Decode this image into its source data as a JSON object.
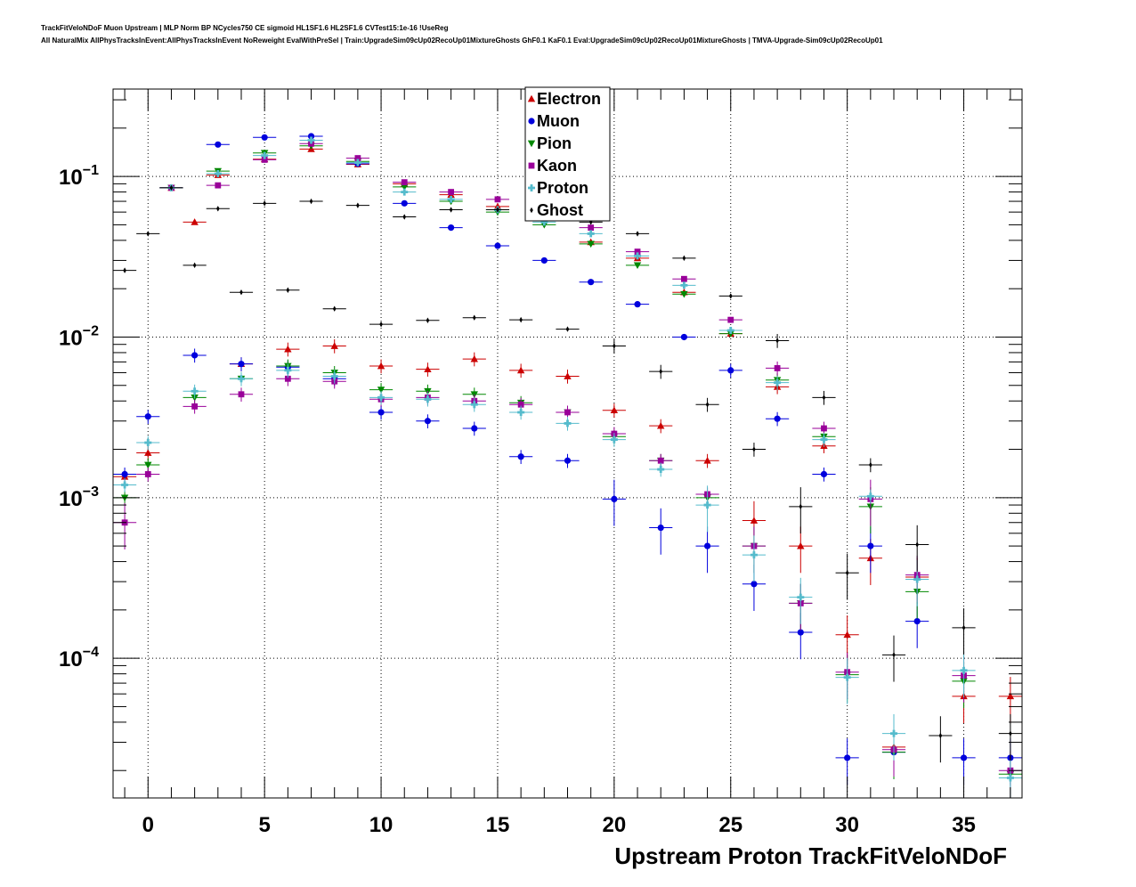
{
  "header": {
    "line1": "TrackFitVeloNDoF Muon Upstream | MLP Norm BP NCycles750 CE sigmoid HL1SF1.6 HL2SF1.6 CVTest15:1e-16 !UseReg",
    "line2": "All NaturalMix AllPhysTracksInEvent:AllPhysTracksInEvent NoReweight EvalWithPreSel | Train:UpgradeSim09cUp02RecoUp01MixtureGhosts GhF0.1 KaF0.1 Eval:UpgradeSim09cUp02RecoUp01MixtureGhosts | TMVA-Upgrade-Sim09cUp02RecoUp01"
  },
  "chart_data": {
    "type": "scatter",
    "xlabel": "Upstream Proton TrackFitVeloNDoF",
    "ylabel": "",
    "xlim": [
      -1.5,
      37.5
    ],
    "ylim": [
      1.35e-05,
      0.35
    ],
    "yscale": "log",
    "grid": true,
    "legend_position": "top-center",
    "x_ticks": [
      "0",
      "5",
      "10",
      "15",
      "20",
      "25",
      "30",
      "35"
    ],
    "y_ticks": [
      {
        "base": "10",
        "exp": "−1"
      },
      {
        "base": "10",
        "exp": "−2"
      },
      {
        "base": "10",
        "exp": "−3"
      },
      {
        "base": "10",
        "exp": "−4"
      }
    ],
    "x": [
      -1,
      0,
      1,
      2,
      3,
      4,
      5,
      6,
      7,
      8,
      9,
      10,
      11,
      12,
      13,
      14,
      15,
      16,
      17,
      18,
      19,
      20,
      21,
      22,
      23,
      24,
      25,
      26,
      27,
      28,
      29,
      30,
      31,
      32,
      33,
      34,
      35,
      36,
      37
    ],
    "series": [
      {
        "name": "Electron",
        "color": "#cc0000",
        "marker": "triangle-up",
        "values": [
          0.00135,
          0.0019,
          0.085,
          0.052,
          0.102,
          0.0068,
          0.128,
          0.0084,
          0.148,
          0.0088,
          0.119,
          0.0066,
          0.09,
          0.0063,
          0.077,
          0.0073,
          0.065,
          0.0062,
          0.056,
          0.0057,
          0.039,
          0.0035,
          0.031,
          0.0028,
          0.019,
          0.0017,
          0.0105,
          0.00072,
          0.0049,
          0.0005,
          0.0021,
          0.00014,
          0.00042,
          2.8e-05,
          0.00032,
          null,
          5.8e-05,
          null,
          5.8e-05
        ]
      },
      {
        "name": "Muon",
        "color": "#0000dd",
        "marker": "circle",
        "values": [
          0.0014,
          0.0032,
          0.085,
          0.0077,
          0.158,
          0.0068,
          0.175,
          0.0065,
          0.178,
          0.0055,
          0.12,
          0.0034,
          0.068,
          0.003,
          0.048,
          0.0027,
          0.037,
          0.0018,
          0.03,
          0.0017,
          0.022,
          0.00098,
          0.016,
          0.00065,
          0.01,
          0.0005,
          0.0062,
          0.00029,
          0.0031,
          0.000145,
          0.0014,
          2.4e-05,
          0.0005,
          2.6e-05,
          0.00017,
          null,
          2.4e-05,
          null,
          2.4e-05
        ]
      },
      {
        "name": "Pion",
        "color": "#008800",
        "marker": "triangle-down",
        "values": [
          0.001,
          0.0016,
          0.085,
          0.0042,
          0.108,
          0.0055,
          0.14,
          0.0066,
          0.155,
          0.006,
          0.124,
          0.0047,
          0.086,
          0.0046,
          0.07,
          0.0044,
          0.06,
          0.0039,
          0.05,
          0.0034,
          0.038,
          0.0024,
          0.028,
          0.0017,
          0.0185,
          0.001,
          0.0105,
          0.0005,
          0.0054,
          0.00022,
          0.0024,
          7.9e-05,
          0.00088,
          2.6e-05,
          0.00026,
          null,
          7.2e-05,
          null,
          1.9e-05
        ]
      },
      {
        "name": "Kaon",
        "color": "#990099",
        "marker": "square",
        "values": [
          0.0007,
          0.0014,
          0.085,
          0.0037,
          0.088,
          0.0044,
          0.127,
          0.0055,
          0.16,
          0.0053,
          0.13,
          0.0041,
          0.092,
          0.0042,
          0.08,
          0.004,
          0.072,
          0.0038,
          0.06,
          0.0034,
          0.048,
          0.0025,
          0.034,
          0.0017,
          0.023,
          0.00105,
          0.0128,
          0.0005,
          0.0064,
          0.00022,
          0.0027,
          8.2e-05,
          0.00098,
          2.7e-05,
          0.00033,
          null,
          7.8e-05,
          null,
          2e-05
        ]
      },
      {
        "name": "Proton",
        "color": "#55bbcc",
        "marker": "cross",
        "values": [
          0.0012,
          0.0022,
          0.085,
          0.0046,
          0.104,
          0.0055,
          0.135,
          0.0062,
          0.168,
          0.0057,
          0.122,
          0.0042,
          0.08,
          0.0041,
          0.072,
          0.0038,
          0.062,
          0.0034,
          0.052,
          0.0029,
          0.044,
          0.0023,
          0.032,
          0.0015,
          0.021,
          0.0009,
          0.011,
          0.00044,
          0.0052,
          0.00024,
          0.0023,
          7.6e-05,
          0.00102,
          3.4e-05,
          0.00031,
          null,
          8.4e-05,
          null,
          1.8e-05
        ]
      },
      {
        "name": "Ghost",
        "color": "#000000",
        "marker": "diamond",
        "values": [
          0.026,
          0.044,
          0.085,
          0.028,
          0.063,
          0.019,
          0.068,
          0.0196,
          0.07,
          0.015,
          0.066,
          0.012,
          0.056,
          0.0127,
          0.062,
          0.0132,
          0.062,
          0.0128,
          0.055,
          0.0112,
          0.052,
          0.0088,
          0.044,
          0.0061,
          0.031,
          0.0038,
          0.018,
          0.002,
          0.0095,
          0.00088,
          0.0042,
          0.00034,
          0.0016,
          0.000105,
          0.00051,
          3.3e-05,
          0.000155,
          null,
          3.4e-05
        ]
      }
    ]
  }
}
